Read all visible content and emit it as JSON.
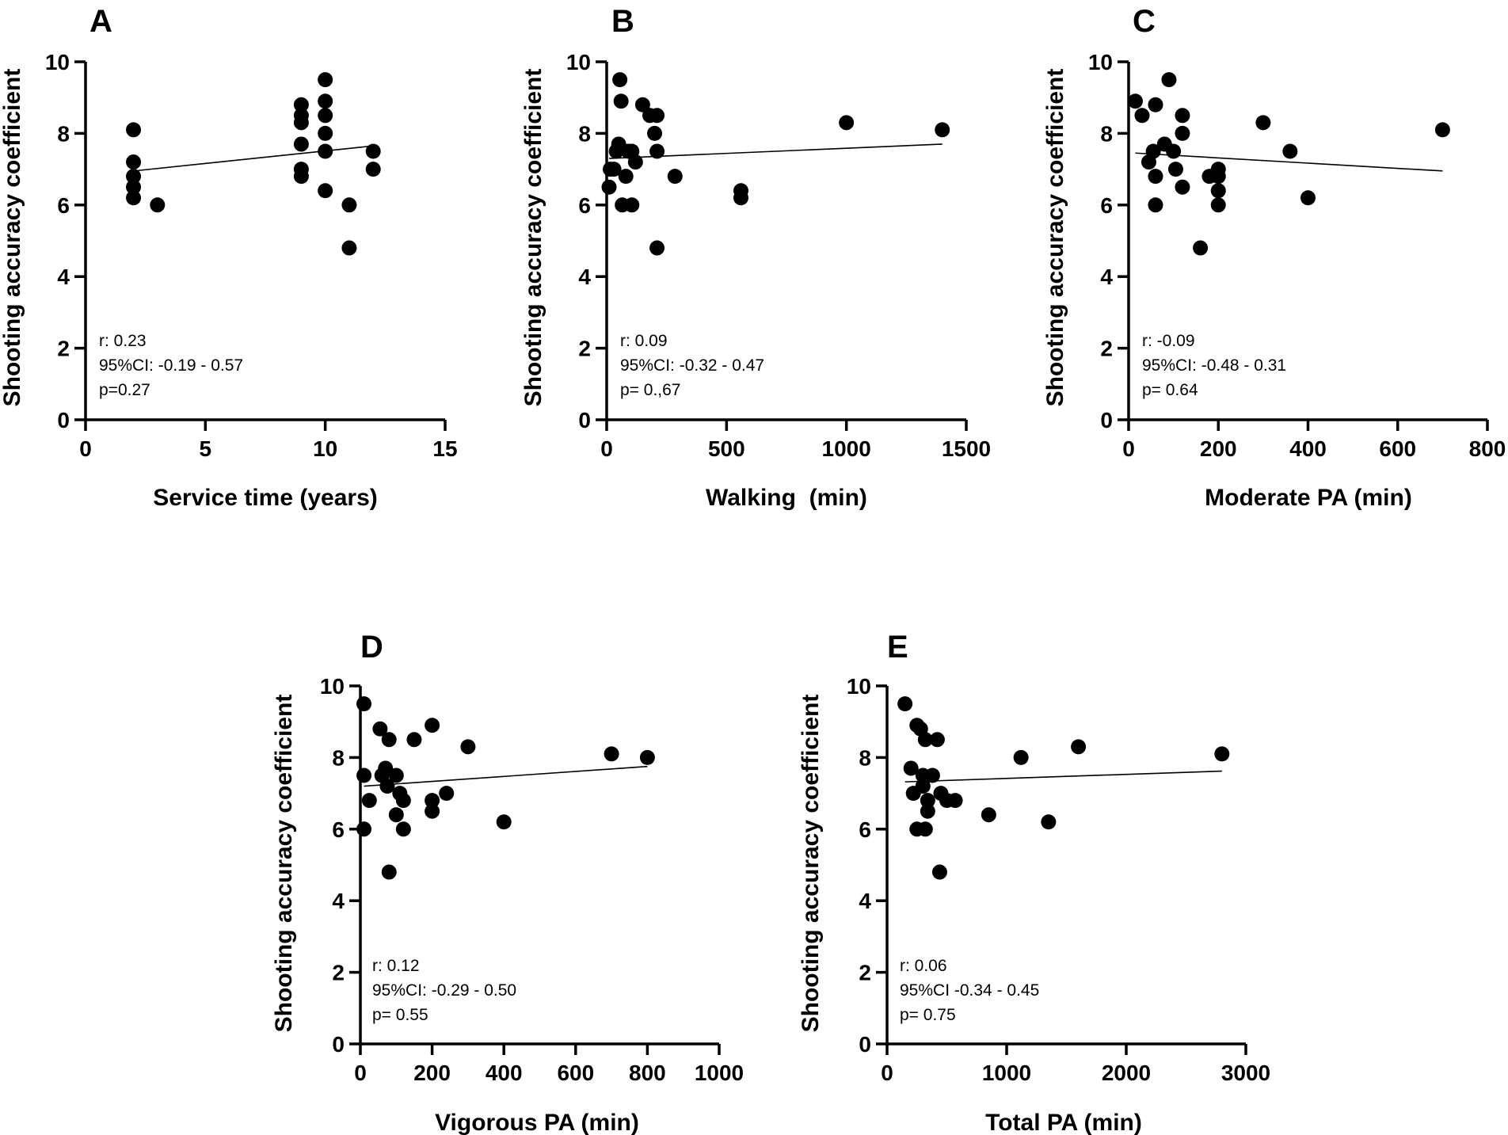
{
  "chart_data": [
    {
      "panel": "A",
      "type": "scatter",
      "xlabel": "Service time (years)",
      "ylabel": "Shooting accuracy coefficient",
      "xlim": [
        0,
        15
      ],
      "ylim": [
        0,
        10
      ],
      "xticks": [
        0,
        5,
        10,
        15
      ],
      "yticks": [
        0,
        2,
        4,
        6,
        8,
        10
      ],
      "points": [
        [
          2,
          8.1
        ],
        [
          2,
          7.2
        ],
        [
          2,
          6.8
        ],
        [
          2,
          6.5
        ],
        [
          2,
          6.2
        ],
        [
          3,
          6.0
        ],
        [
          9,
          8.8
        ],
        [
          9,
          8.5
        ],
        [
          9,
          8.3
        ],
        [
          9,
          7.7
        ],
        [
          9,
          7.0
        ],
        [
          9,
          6.8
        ],
        [
          10,
          9.5
        ],
        [
          10,
          8.9
        ],
        [
          10,
          8.5
        ],
        [
          10,
          8.0
        ],
        [
          10,
          7.5
        ],
        [
          10,
          6.4
        ],
        [
          11,
          6.0
        ],
        [
          11,
          4.8
        ],
        [
          12,
          7.5
        ],
        [
          12,
          7.0
        ]
      ],
      "fit_line": [
        [
          2,
          6.95
        ],
        [
          12,
          7.65
        ]
      ],
      "stats": [
        "r: 0.23",
        "95%CI: -0.19 - 0.57",
        "p=0.27"
      ]
    },
    {
      "panel": "B",
      "type": "scatter",
      "xlabel": "Walking  (min)",
      "ylabel": "Shooting accuracy coefficient",
      "xlim": [
        0,
        1500
      ],
      "ylim": [
        0,
        10
      ],
      "xticks": [
        0,
        500,
        1000,
        1500
      ],
      "yticks": [
        0,
        2,
        4,
        6,
        8,
        10
      ],
      "points": [
        [
          10,
          6.5
        ],
        [
          15,
          7.0
        ],
        [
          30,
          7.0
        ],
        [
          40,
          7.5
        ],
        [
          50,
          7.7
        ],
        [
          55,
          9.5
        ],
        [
          60,
          8.9
        ],
        [
          65,
          6.0
        ],
        [
          80,
          6.8
        ],
        [
          90,
          7.5
        ],
        [
          105,
          7.5
        ],
        [
          105,
          6.0
        ],
        [
          120,
          7.2
        ],
        [
          150,
          8.8
        ],
        [
          180,
          8.5
        ],
        [
          200,
          8.0
        ],
        [
          210,
          8.5
        ],
        [
          210,
          7.5
        ],
        [
          210,
          4.8
        ],
        [
          285,
          6.8
        ],
        [
          560,
          6.4
        ],
        [
          560,
          6.2
        ],
        [
          1000,
          8.3
        ],
        [
          1400,
          8.1
        ]
      ],
      "fit_line": [
        [
          10,
          7.3
        ],
        [
          1400,
          7.7
        ]
      ],
      "stats": [
        "r: 0.09",
        "95%CI: -0.32 - 0.47",
        "p= 0.,67"
      ]
    },
    {
      "panel": "C",
      "type": "scatter",
      "xlabel": "Moderate PA (min)",
      "ylabel": "Shooting accuracy coefficient",
      "xlim": [
        0,
        800
      ],
      "ylim": [
        0,
        10
      ],
      "xticks": [
        0,
        200,
        400,
        600,
        800
      ],
      "yticks": [
        0,
        2,
        4,
        6,
        8,
        10
      ],
      "points": [
        [
          15,
          8.9
        ],
        [
          30,
          8.5
        ],
        [
          45,
          7.2
        ],
        [
          55,
          7.5
        ],
        [
          60,
          8.8
        ],
        [
          60,
          6.8
        ],
        [
          60,
          6.0
        ],
        [
          80,
          7.7
        ],
        [
          90,
          9.5
        ],
        [
          100,
          7.5
        ],
        [
          105,
          7.0
        ],
        [
          120,
          8.5
        ],
        [
          120,
          8.0
        ],
        [
          120,
          6.5
        ],
        [
          160,
          4.8
        ],
        [
          180,
          6.8
        ],
        [
          200,
          7.0
        ],
        [
          200,
          6.8
        ],
        [
          200,
          6.4
        ],
        [
          200,
          6.0
        ],
        [
          300,
          8.3
        ],
        [
          360,
          7.5
        ],
        [
          400,
          6.2
        ],
        [
          700,
          8.1
        ]
      ],
      "fit_line": [
        [
          15,
          7.45
        ],
        [
          700,
          6.95
        ]
      ],
      "stats": [
        "r: -0.09",
        "95%CI: -0.48 - 0.31",
        "p= 0.64"
      ]
    },
    {
      "panel": "D",
      "type": "scatter",
      "xlabel": "Vigorous PA (min)",
      "ylabel": "Shooting accuracy coefficient",
      "xlim": [
        0,
        1000
      ],
      "ylim": [
        0,
        10
      ],
      "xticks": [
        0,
        200,
        400,
        600,
        800,
        1000
      ],
      "yticks": [
        0,
        2,
        4,
        6,
        8,
        10
      ],
      "points": [
        [
          10,
          9.5
        ],
        [
          10,
          7.5
        ],
        [
          10,
          6.0
        ],
        [
          25,
          6.8
        ],
        [
          55,
          8.8
        ],
        [
          60,
          7.5
        ],
        [
          70,
          7.7
        ],
        [
          75,
          7.2
        ],
        [
          80,
          8.5
        ],
        [
          80,
          4.8
        ],
        [
          100,
          7.5
        ],
        [
          100,
          6.4
        ],
        [
          110,
          7.0
        ],
        [
          120,
          6.8
        ],
        [
          120,
          6.0
        ],
        [
          150,
          8.5
        ],
        [
          200,
          8.9
        ],
        [
          200,
          6.8
        ],
        [
          200,
          6.5
        ],
        [
          240,
          7.0
        ],
        [
          300,
          8.3
        ],
        [
          400,
          6.2
        ],
        [
          700,
          8.1
        ],
        [
          800,
          8.0
        ]
      ],
      "fit_line": [
        [
          10,
          7.2
        ],
        [
          800,
          7.75
        ]
      ],
      "stats": [
        "r: 0.12",
        "95%CI: -0.29 - 0.50",
        "p= 0.55"
      ]
    },
    {
      "panel": "E",
      "type": "scatter",
      "xlabel": "Total PA (min)",
      "ylabel": "Shooting accuracy coefficient",
      "xlim": [
        0,
        3000
      ],
      "ylim": [
        0,
        10
      ],
      "xticks": [
        0,
        1000,
        2000,
        3000
      ],
      "yticks": [
        0,
        2,
        4,
        6,
        8,
        10
      ],
      "points": [
        [
          150,
          9.5
        ],
        [
          200,
          7.7
        ],
        [
          220,
          7.0
        ],
        [
          250,
          8.9
        ],
        [
          250,
          6.0
        ],
        [
          280,
          8.8
        ],
        [
          300,
          7.5
        ],
        [
          300,
          7.2
        ],
        [
          320,
          8.5
        ],
        [
          320,
          6.0
        ],
        [
          340,
          6.8
        ],
        [
          340,
          6.5
        ],
        [
          380,
          7.5
        ],
        [
          420,
          8.5
        ],
        [
          440,
          4.8
        ],
        [
          450,
          7.0
        ],
        [
          500,
          6.8
        ],
        [
          570,
          6.8
        ],
        [
          850,
          6.4
        ],
        [
          1120,
          8.0
        ],
        [
          1350,
          6.2
        ],
        [
          1600,
          8.3
        ],
        [
          2800,
          8.1
        ]
      ],
      "fit_line": [
        [
          150,
          7.32
        ],
        [
          2800,
          7.62
        ]
      ],
      "stats": [
        "r: 0.06",
        "95%CI -0.34 - 0.45",
        "p= 0.75"
      ]
    }
  ]
}
